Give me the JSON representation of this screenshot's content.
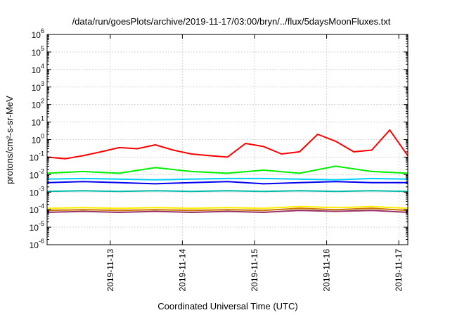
{
  "chart_data": {
    "type": "line",
    "title": "/data/run/goesPlots/archive/2019-11-17/03:00/bryn/../flux/5daysMoonFluxes.txt",
    "xlabel": "Coordinated Universal Time (UTC)",
    "ylabel": "protons/cm²-s-sr-MeV",
    "y_scale": "log",
    "ylim": [
      1e-06,
      1000000.0
    ],
    "y_ticks": [
      {
        "base": "10",
        "exp": "-6"
      },
      {
        "base": "10",
        "exp": "-5"
      },
      {
        "base": "10",
        "exp": "-4"
      },
      {
        "base": "10",
        "exp": "-3"
      },
      {
        "base": "10",
        "exp": "-2"
      },
      {
        "base": "10",
        "exp": "-1"
      },
      {
        "base": "10",
        "exp": "0"
      },
      {
        "base": "10",
        "exp": "1"
      },
      {
        "base": "10",
        "exp": "2"
      },
      {
        "base": "10",
        "exp": "3"
      },
      {
        "base": "10",
        "exp": "4"
      },
      {
        "base": "10",
        "exp": "5"
      },
      {
        "base": "10",
        "exp": "6"
      }
    ],
    "xlim": [
      "2019-11-12T03:00",
      "2019-11-17T03:00"
    ],
    "x_ticks": [
      "2019-11-13",
      "2019-11-14",
      "2019-11-15",
      "2019-11-16",
      "2019-11-17"
    ],
    "grid": true,
    "legend": "none",
    "series": [
      {
        "color": "#ff0000",
        "x": [
          "2019-11-12T03:00",
          "2019-11-12T09:00",
          "2019-11-12T15:00",
          "2019-11-12T21:00",
          "2019-11-13T03:00",
          "2019-11-13T09:00",
          "2019-11-13T15:00",
          "2019-11-13T21:00",
          "2019-11-14T03:00",
          "2019-11-14T09:00",
          "2019-11-14T15:00",
          "2019-11-14T21:00",
          "2019-11-15T03:00",
          "2019-11-15T09:00",
          "2019-11-15T15:00",
          "2019-11-15T21:00",
          "2019-11-16T03:00",
          "2019-11-16T09:00",
          "2019-11-16T15:00",
          "2019-11-16T21:00",
          "2019-11-17T03:00"
        ],
        "values": [
          0.1,
          0.08,
          0.12,
          0.2,
          0.35,
          0.3,
          0.5,
          0.25,
          0.15,
          0.12,
          0.1,
          0.6,
          0.4,
          0.15,
          0.2,
          2.0,
          0.8,
          0.2,
          0.25,
          3.5,
          0.12
        ]
      },
      {
        "color": "#00ee00",
        "x": [
          "2019-11-12T03:00",
          "2019-11-12T15:00",
          "2019-11-13T03:00",
          "2019-11-13T15:00",
          "2019-11-14T03:00",
          "2019-11-14T15:00",
          "2019-11-15T03:00",
          "2019-11-15T15:00",
          "2019-11-16T03:00",
          "2019-11-16T15:00",
          "2019-11-17T03:00"
        ],
        "values": [
          0.012,
          0.015,
          0.012,
          0.025,
          0.015,
          0.012,
          0.018,
          0.012,
          0.03,
          0.015,
          0.012
        ]
      },
      {
        "color": "#00ccff",
        "x": [
          "2019-11-12T03:00",
          "2019-11-12T15:00",
          "2019-11-13T03:00",
          "2019-11-13T15:00",
          "2019-11-14T03:00",
          "2019-11-14T15:00",
          "2019-11-15T03:00",
          "2019-11-15T15:00",
          "2019-11-16T03:00",
          "2019-11-16T15:00",
          "2019-11-17T03:00"
        ],
        "values": [
          0.0055,
          0.006,
          0.0055,
          0.005,
          0.0055,
          0.006,
          0.006,
          0.0055,
          0.005,
          0.006,
          0.0055
        ]
      },
      {
        "color": "#0000ee",
        "x": [
          "2019-11-12T03:00",
          "2019-11-12T15:00",
          "2019-11-13T03:00",
          "2019-11-13T15:00",
          "2019-11-14T03:00",
          "2019-11-14T15:00",
          "2019-11-15T03:00",
          "2019-11-15T15:00",
          "2019-11-16T03:00",
          "2019-11-16T15:00",
          "2019-11-17T03:00"
        ],
        "values": [
          0.0035,
          0.004,
          0.0035,
          0.003,
          0.0035,
          0.004,
          0.003,
          0.0035,
          0.004,
          0.0035,
          0.0035
        ]
      },
      {
        "color": "#00bbaa",
        "x": [
          "2019-11-12T03:00",
          "2019-11-12T15:00",
          "2019-11-13T03:00",
          "2019-11-13T15:00",
          "2019-11-14T03:00",
          "2019-11-14T15:00",
          "2019-11-15T03:00",
          "2019-11-15T15:00",
          "2019-11-16T03:00",
          "2019-11-16T15:00",
          "2019-11-17T03:00"
        ],
        "values": [
          0.0011,
          0.0012,
          0.0011,
          0.0012,
          0.0011,
          0.0012,
          0.0011,
          0.0012,
          0.0011,
          0.0012,
          0.0011
        ]
      },
      {
        "color": "#ffee00",
        "x": [
          "2019-11-12T03:00",
          "2019-11-12T15:00",
          "2019-11-13T03:00",
          "2019-11-13T15:00",
          "2019-11-14T03:00",
          "2019-11-14T15:00",
          "2019-11-15T03:00",
          "2019-11-15T15:00",
          "2019-11-16T03:00",
          "2019-11-16T15:00",
          "2019-11-17T03:00"
        ],
        "values": [
          0.00012,
          0.00013,
          0.00012,
          0.00013,
          0.00012,
          0.00013,
          0.00012,
          0.00015,
          0.00013,
          0.00015,
          0.00012
        ]
      },
      {
        "color": "#cc7700",
        "x": [
          "2019-11-12T03:00",
          "2019-11-12T15:00",
          "2019-11-13T03:00",
          "2019-11-13T15:00",
          "2019-11-14T03:00",
          "2019-11-14T15:00",
          "2019-11-15T03:00",
          "2019-11-15T15:00",
          "2019-11-16T03:00",
          "2019-11-16T15:00",
          "2019-11-17T03:00"
        ],
        "values": [
          9e-05,
          0.0001,
          9e-05,
          0.0001,
          9e-05,
          0.0001,
          9e-05,
          0.00012,
          0.0001,
          0.00012,
          9e-05
        ]
      },
      {
        "color": "#993366",
        "x": [
          "2019-11-12T03:00",
          "2019-11-12T15:00",
          "2019-11-13T03:00",
          "2019-11-13T15:00",
          "2019-11-14T03:00",
          "2019-11-14T15:00",
          "2019-11-15T03:00",
          "2019-11-15T15:00",
          "2019-11-16T03:00",
          "2019-11-16T15:00",
          "2019-11-17T03:00"
        ],
        "values": [
          7e-05,
          8e-05,
          7e-05,
          8e-05,
          7e-05,
          8e-05,
          7e-05,
          9e-05,
          8e-05,
          9e-05,
          7e-05
        ]
      }
    ]
  }
}
